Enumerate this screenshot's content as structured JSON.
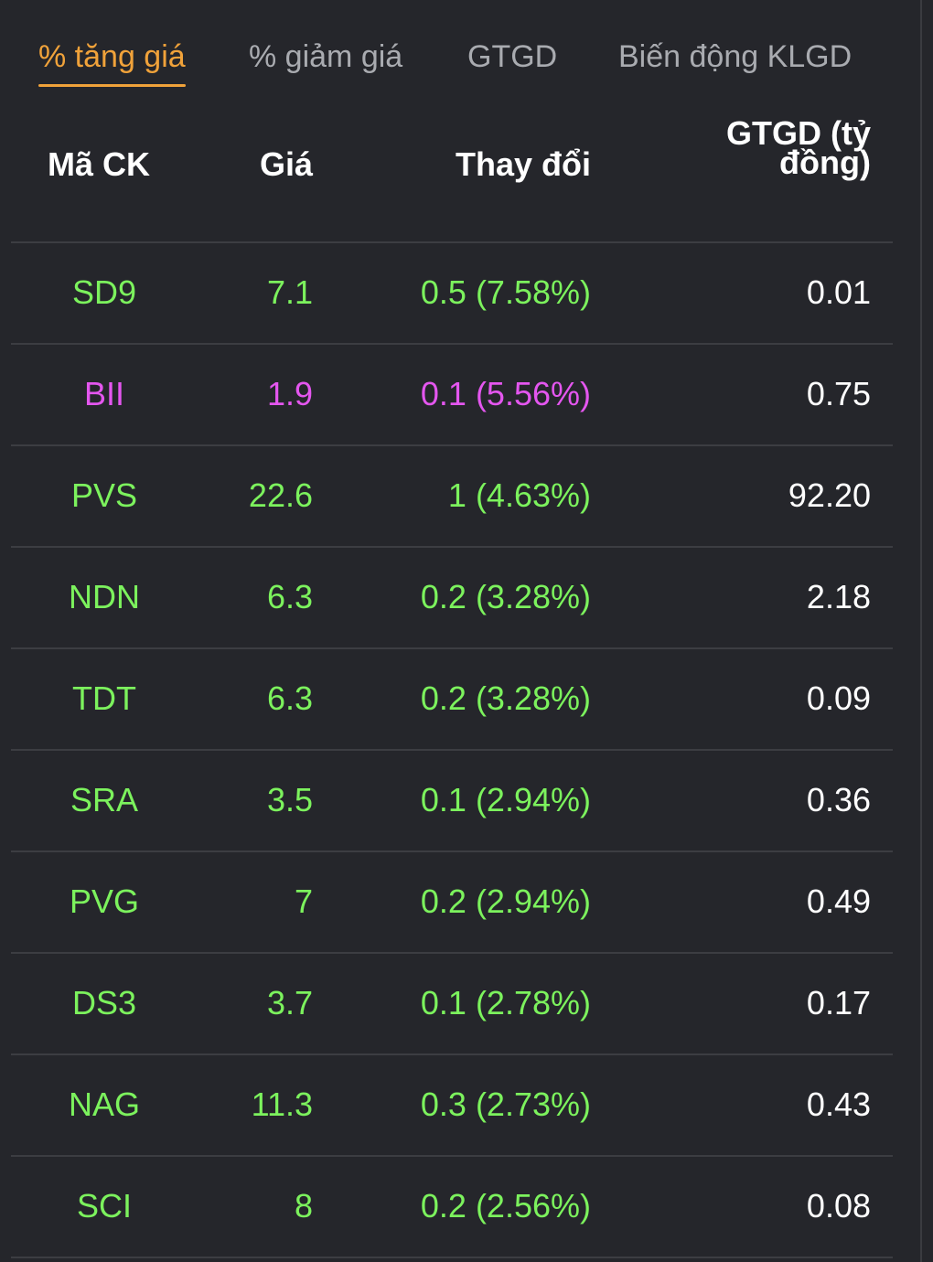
{
  "tabs": [
    {
      "label": "% tăng giá",
      "active": true
    },
    {
      "label": "% giảm giá",
      "active": false
    },
    {
      "label": "GTGD",
      "active": false
    },
    {
      "label": "Biến động KLGD",
      "active": false
    }
  ],
  "columns": {
    "symbol": "Mã CK",
    "price": "Giá",
    "change": "Thay đổi",
    "value_line1": "GTGD (tỷ",
    "value_line2": "đồng)"
  },
  "colors": {
    "up": "#7cf25d",
    "ceiling": "#e456ef",
    "accent": "#f0a23a",
    "background": "#25262b"
  },
  "rows": [
    {
      "symbol": "SD9",
      "price": "7.1",
      "change": "0.5 (7.58%)",
      "value": "0.01",
      "color": "green"
    },
    {
      "symbol": "BII",
      "price": "1.9",
      "change": "0.1 (5.56%)",
      "value": "0.75",
      "color": "magenta"
    },
    {
      "symbol": "PVS",
      "price": "22.6",
      "change": "1 (4.63%)",
      "value": "92.20",
      "color": "green"
    },
    {
      "symbol": "NDN",
      "price": "6.3",
      "change": "0.2 (3.28%)",
      "value": "2.18",
      "color": "green"
    },
    {
      "symbol": "TDT",
      "price": "6.3",
      "change": "0.2 (3.28%)",
      "value": "0.09",
      "color": "green"
    },
    {
      "symbol": "SRA",
      "price": "3.5",
      "change": "0.1 (2.94%)",
      "value": "0.36",
      "color": "green"
    },
    {
      "symbol": "PVG",
      "price": "7",
      "change": "0.2 (2.94%)",
      "value": "0.49",
      "color": "green"
    },
    {
      "symbol": "DS3",
      "price": "3.7",
      "change": "0.1 (2.78%)",
      "value": "0.17",
      "color": "green"
    },
    {
      "symbol": "NAG",
      "price": "11.3",
      "change": "0.3 (2.73%)",
      "value": "0.43",
      "color": "green"
    },
    {
      "symbol": "SCI",
      "price": "8",
      "change": "0.2 (2.56%)",
      "value": "0.08",
      "color": "green"
    }
  ]
}
